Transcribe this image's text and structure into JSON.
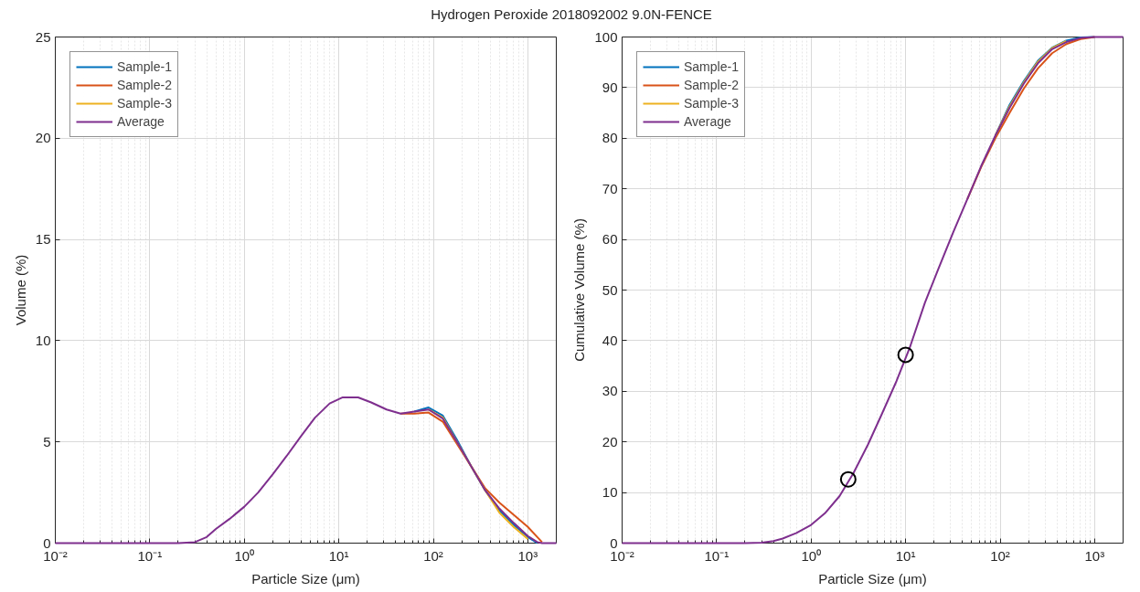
{
  "chart_data": [
    {
      "type": "line",
      "title": "Hydrogen Peroxide 2018092002 9.0N-FENCE",
      "xlabel": "Particle Size (μm)",
      "ylabel": "Volume (%)",
      "log": "x",
      "grid": true,
      "legend": "top left",
      "xlim": [
        0.01,
        2000
      ],
      "ylim": [
        0,
        25
      ],
      "xticks": [
        {
          "value": 0.01,
          "label": "10⁻²"
        },
        {
          "value": 0.1,
          "label": "10⁻¹"
        },
        {
          "value": 1,
          "label": "10⁰"
        },
        {
          "value": 10,
          "label": "10¹"
        },
        {
          "value": 100,
          "label": "10²"
        },
        {
          "value": 1000,
          "label": "10³"
        }
      ],
      "yticks": [
        0,
        5,
        10,
        15,
        20,
        25
      ],
      "x": [
        0.01,
        0.1,
        0.2,
        0.3,
        0.4,
        0.5,
        0.7,
        1,
        1.4,
        2,
        2.8,
        4,
        5.6,
        8,
        11,
        16,
        22,
        32,
        45,
        63,
        89,
        126,
        178,
        251,
        355,
        501,
        708,
        1000,
        1259,
        1413,
        2000
      ],
      "series": [
        {
          "name": "Sample-1",
          "color": "#0072bd",
          "values": [
            null,
            null,
            null,
            null,
            null,
            null,
            null,
            null,
            null,
            null,
            null,
            null,
            null,
            null,
            null,
            null,
            null,
            null,
            null,
            6.5,
            6.7,
            6.3,
            5.1,
            3.8,
            2.6,
            1.6,
            0.9,
            0.3,
            0,
            null,
            null
          ]
        },
        {
          "name": "Sample-2",
          "color": "#d95319",
          "values": [
            null,
            null,
            null,
            null,
            null,
            null,
            null,
            null,
            null,
            null,
            null,
            null,
            null,
            null,
            null,
            null,
            null,
            null,
            6.4,
            6.4,
            6.45,
            6.0,
            4.9,
            3.8,
            2.7,
            2.0,
            1.4,
            0.8,
            0.3,
            0.05,
            null
          ]
        },
        {
          "name": "Sample-3",
          "color": "#edb120",
          "values": [
            null,
            null,
            null,
            null,
            null,
            null,
            null,
            null,
            null,
            null,
            null,
            null,
            null,
            null,
            null,
            null,
            null,
            null,
            null,
            null,
            6.6,
            6.2,
            5.0,
            3.8,
            2.6,
            1.5,
            0.8,
            0.2,
            null,
            null,
            null
          ]
        },
        {
          "name": "Average",
          "color": "#7e2f8e",
          "values": [
            0,
            0,
            0,
            0.05,
            0.3,
            0.7,
            1.2,
            1.8,
            2.5,
            3.4,
            4.3,
            5.3,
            6.2,
            6.9,
            7.2,
            7.2,
            6.95,
            6.6,
            6.4,
            6.5,
            6.6,
            6.15,
            5.0,
            3.8,
            2.6,
            1.7,
            1.0,
            0.35,
            0.05,
            0,
            0
          ]
        }
      ]
    },
    {
      "type": "line",
      "xlabel": "Particle Size (μm)",
      "ylabel": "Cumulative Volume (%)",
      "log": "x",
      "grid": true,
      "legend": "top left",
      "xlim": [
        0.01,
        2000
      ],
      "ylim": [
        0,
        100
      ],
      "xticks": [
        {
          "value": 0.01,
          "label": "10⁻²"
        },
        {
          "value": 0.1,
          "label": "10⁻¹"
        },
        {
          "value": 1,
          "label": "10⁰"
        },
        {
          "value": 10,
          "label": "10¹"
        },
        {
          "value": 100,
          "label": "10²"
        },
        {
          "value": 1000,
          "label": "10³"
        }
      ],
      "yticks": [
        0,
        10,
        20,
        30,
        40,
        50,
        60,
        70,
        80,
        90,
        100
      ],
      "x": [
        0.01,
        0.1,
        0.2,
        0.3,
        0.4,
        0.5,
        0.7,
        1,
        1.4,
        2,
        2.8,
        4,
        5.6,
        8,
        11,
        16,
        22,
        32,
        45,
        63,
        89,
        126,
        178,
        251,
        355,
        501,
        708,
        1000,
        1259,
        1413,
        2000
      ],
      "series": [
        {
          "name": "Sample-1",
          "color": "#0072bd",
          "values": [
            null,
            null,
            null,
            null,
            null,
            null,
            null,
            null,
            null,
            null,
            null,
            null,
            null,
            null,
            null,
            null,
            null,
            null,
            null,
            null,
            80.5,
            86.6,
            91.3,
            95.3,
            97.9,
            99.3,
            99.9,
            100,
            null,
            null,
            null
          ]
        },
        {
          "name": "Sample-2",
          "color": "#d95319",
          "values": [
            null,
            null,
            null,
            null,
            null,
            null,
            null,
            null,
            null,
            null,
            null,
            null,
            null,
            null,
            null,
            null,
            null,
            null,
            68,
            74.3,
            80,
            85,
            89.8,
            93.8,
            96.8,
            98.6,
            99.6,
            100,
            null,
            null,
            null
          ]
        },
        {
          "name": "Sample-3",
          "color": "#edb120",
          "values": [
            null,
            null,
            null,
            null,
            null,
            null,
            null,
            null,
            null,
            null,
            null,
            null,
            null,
            null,
            null,
            null,
            null,
            null,
            null,
            null,
            80.5,
            86.3,
            91.0,
            95.1,
            97.8,
            99.2,
            null,
            null,
            null,
            null,
            null
          ]
        },
        {
          "name": "Average",
          "color": "#7e2f8e",
          "values": [
            0,
            0,
            0,
            0.1,
            0.4,
            0.9,
            2.0,
            3.6,
            5.9,
            9.3,
            13.8,
            19.5,
            25.5,
            32.0,
            38.5,
            47.5,
            54,
            61.5,
            68,
            74.5,
            80.5,
            86,
            90.8,
            94.8,
            97.6,
            99.0,
            99.8,
            100,
            100,
            100,
            100
          ]
        },
        {
          "type": "scatter",
          "marker": "circle",
          "color": "#000000",
          "x": [
            2.47,
            10
          ],
          "values": [
            12.6,
            37.2
          ]
        }
      ]
    }
  ]
}
